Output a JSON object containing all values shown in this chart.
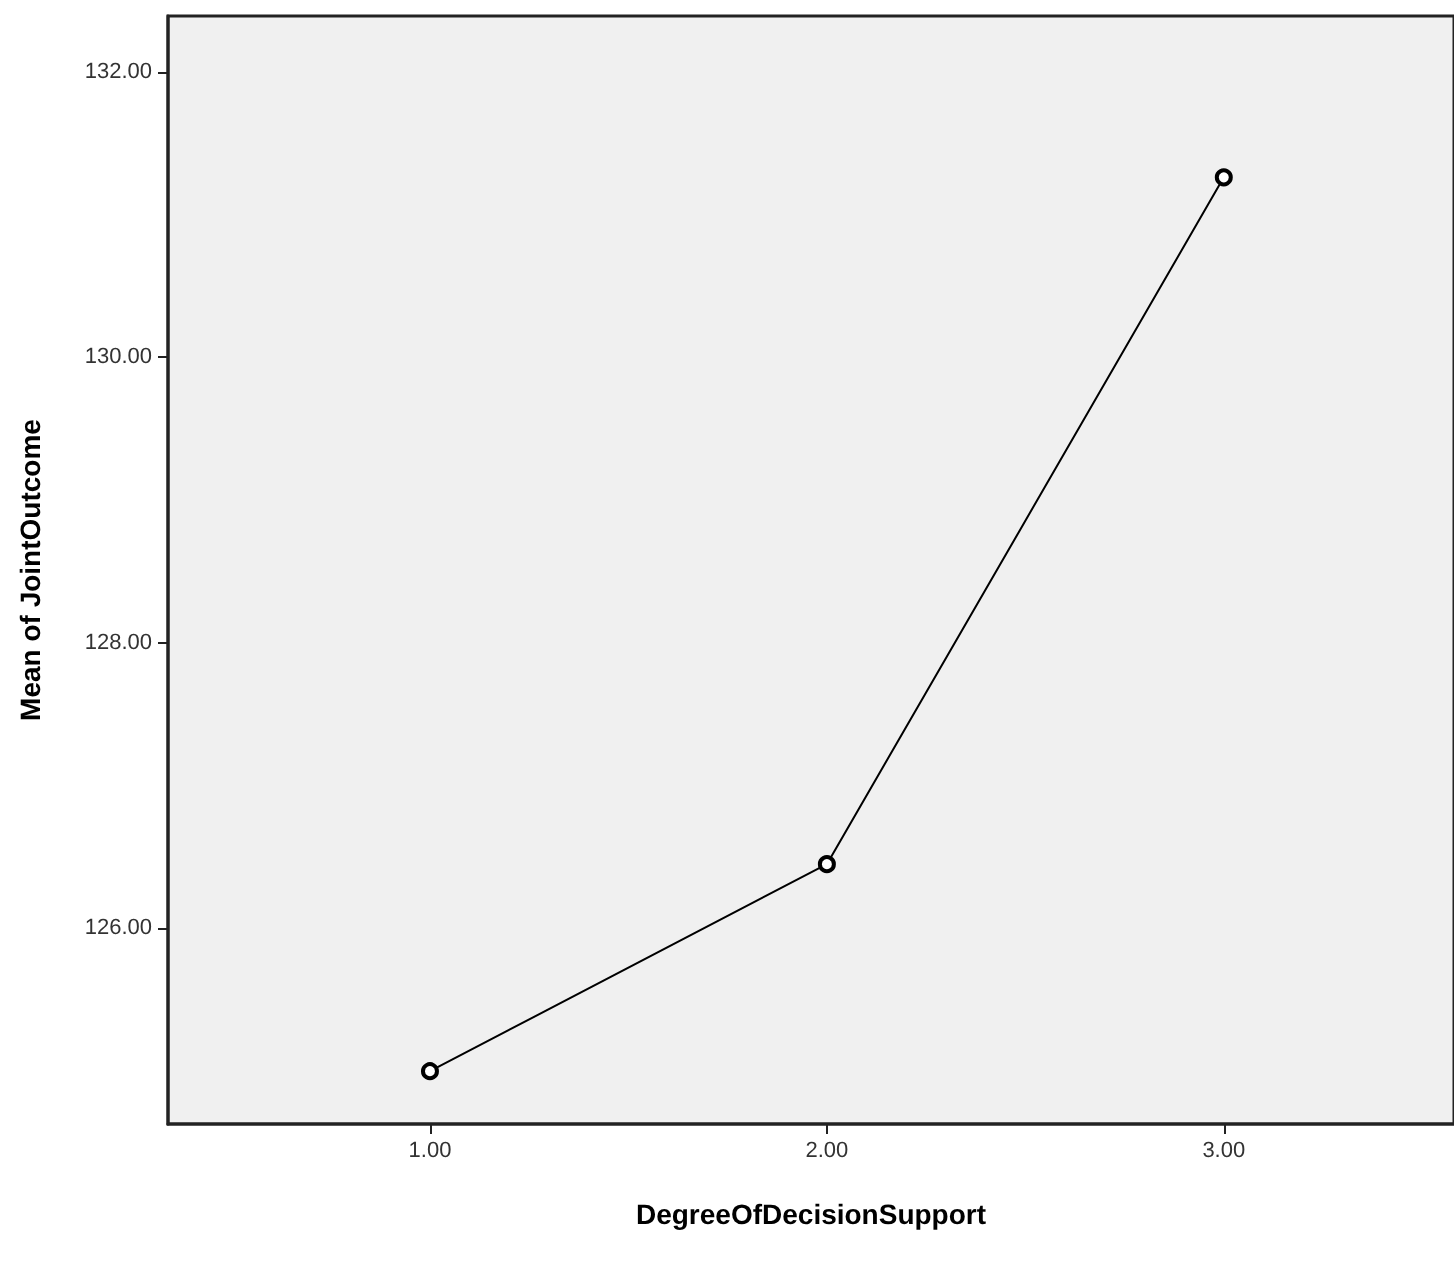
{
  "chart_data": {
    "type": "line",
    "xlabel": "DegreeOfDecisionSupport",
    "ylabel": "Mean of JointOutcome",
    "x": [
      1,
      2,
      3
    ],
    "series": [
      {
        "color": "#000000",
        "values": [
          125.0,
          126.45,
          131.26
        ]
      }
    ],
    "xlim": [
      0.34,
      3.58
    ],
    "xticks": [
      {
        "value": 1,
        "label": "1.00"
      },
      {
        "value": 2,
        "label": "2.00"
      },
      {
        "value": 3,
        "label": "3.00"
      }
    ],
    "ylim": [
      124.63,
      132.39
    ],
    "yticks": [
      {
        "value": 126,
        "label": "126.00"
      },
      {
        "value": 128,
        "label": "128.00"
      },
      {
        "value": 130,
        "label": "130.00"
      },
      {
        "value": 132,
        "label": "132.00"
      }
    ],
    "grid": false,
    "marker": "circle",
    "line_style": "solid"
  }
}
